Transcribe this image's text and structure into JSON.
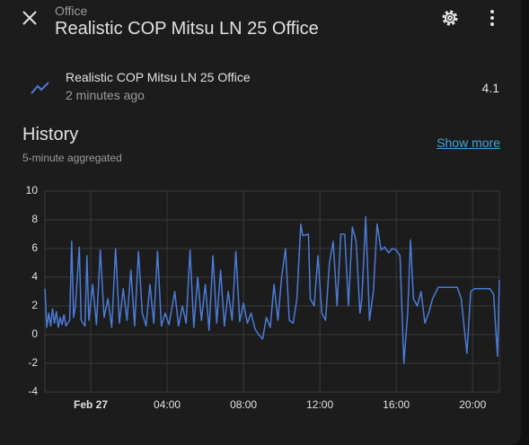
{
  "header": {
    "subtitle": "Office",
    "title": "Realistic COP Mitsu LN 25 Office"
  },
  "entity": {
    "name": "Realistic COP Mitsu LN 25 Office",
    "last_changed": "2 minutes ago",
    "state": "4.1"
  },
  "history": {
    "title": "History",
    "link": "Show more",
    "note": "5-minute aggregated"
  },
  "chart_data": {
    "type": "line",
    "x": [
      -2.4,
      -2.3,
      -2.2,
      -2.1,
      -2.0,
      -1.9,
      -1.8,
      -1.7,
      -1.6,
      -1.5,
      -1.4,
      -1.3,
      -1.1,
      -1.0,
      -0.9,
      -0.8,
      -0.6,
      -0.5,
      -0.3,
      -0.2,
      -0.1,
      0.1,
      0.3,
      0.5,
      0.7,
      0.9,
      1.1,
      1.3,
      1.5,
      1.7,
      1.9,
      2.1,
      2.3,
      2.5,
      2.7,
      2.9,
      3.1,
      3.3,
      3.5,
      3.7,
      3.9,
      4.1,
      4.4,
      4.6,
      4.8,
      5.0,
      5.2,
      5.4,
      5.6,
      5.8,
      6.0,
      6.2,
      6.4,
      6.6,
      6.8,
      7.0,
      7.2,
      7.4,
      7.6,
      7.8,
      8.0,
      8.2,
      8.4,
      8.6,
      8.8,
      9.0,
      9.2,
      9.4,
      9.6,
      9.8,
      10.0,
      10.2,
      10.4,
      10.6,
      10.8,
      11.0,
      11.1,
      11.4,
      11.5,
      11.7,
      11.9,
      12.1,
      12.3,
      12.5,
      12.7,
      12.9,
      13.1,
      13.3,
      13.5,
      13.7,
      13.9,
      14.1,
      14.2,
      14.4,
      14.6,
      14.8,
      15.0,
      15.2,
      15.4,
      15.6,
      15.8,
      16.0,
      16.2,
      16.4,
      16.6,
      16.75,
      16.9,
      17.1,
      17.3,
      17.5,
      17.7,
      17.9,
      18.2,
      19.2,
      19.4,
      19.7,
      19.9,
      20.1,
      20.9,
      21.1,
      21.3,
      21.4
    ],
    "series": [
      {
        "color": "#4b7bd6",
        "values": [
          3.2,
          0.5,
          1.5,
          0.6,
          1.8,
          0.8,
          1.6,
          0.5,
          1.2,
          0.7,
          1.4,
          0.6,
          1.0,
          6.5,
          1.2,
          2.0,
          6.1,
          1.0,
          0.6,
          5.5,
          1.0,
          3.5,
          0.7,
          5.9,
          1.2,
          2.5,
          0.5,
          6.0,
          0.8,
          3.2,
          1.0,
          4.5,
          0.6,
          5.8,
          1.5,
          0.6,
          3.5,
          0.8,
          5.8,
          0.6,
          1.5,
          0.7,
          3.0,
          0.6,
          2.0,
          0.8,
          5.9,
          0.5,
          4.0,
          1.0,
          3.5,
          0.3,
          5.5,
          0.8,
          4.5,
          0.6,
          3.0,
          1.0,
          5.8,
          0.9,
          2.2,
          0.8,
          1.5,
          0.4,
          0.0,
          -0.3,
          1.2,
          0.5,
          3.5,
          1.0,
          4.0,
          6.0,
          1.0,
          0.8,
          2.5,
          7.7,
          6.9,
          7.0,
          2.5,
          2.0,
          5.5,
          1.5,
          1.0,
          5.0,
          6.5,
          2.0,
          7.0,
          7.0,
          2.0,
          7.5,
          6.5,
          1.5,
          2.5,
          8.2,
          1.0,
          3.0,
          7.7,
          5.9,
          6.1,
          5.7,
          6.0,
          5.9,
          5.5,
          -2.0,
          1.5,
          6.6,
          2.5,
          2.0,
          3.0,
          0.8,
          1.5,
          2.5,
          3.3,
          3.3,
          2.5,
          -1.3,
          3.0,
          3.2,
          3.2,
          2.8,
          -1.5,
          3.8
        ]
      }
    ],
    "xlim": [
      -2.4,
      21.4
    ],
    "xticks": [
      {
        "value": 0,
        "label": "Feb 27"
      },
      {
        "value": 4,
        "label": "04:00"
      },
      {
        "value": 8,
        "label": "08:00"
      },
      {
        "value": 12,
        "label": "12:00"
      },
      {
        "value": 16,
        "label": "16:00"
      },
      {
        "value": 20,
        "label": "20:00"
      }
    ],
    "ylim": [
      -4,
      10
    ],
    "yticks": [
      -4,
      -2,
      0,
      2,
      4,
      6,
      8,
      10
    ],
    "grid": true
  }
}
